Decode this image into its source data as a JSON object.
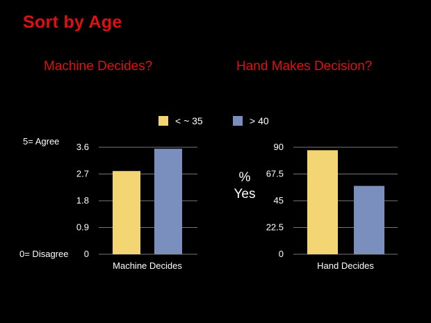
{
  "slide": {
    "title": "Sort by Age",
    "title_color": "#e01010",
    "background": "#000000"
  },
  "legend": [
    {
      "label": "< ~ 35",
      "color": "#f3d673"
    },
    {
      "label": "> 40",
      "color": "#7b8fbf"
    }
  ],
  "chart_data": [
    {
      "type": "bar",
      "title": "Machine Decides?",
      "categories": [
        "Machine Decides"
      ],
      "series": [
        {
          "name": "< ~ 35",
          "values": [
            2.8
          ],
          "color": "#f3d673"
        },
        {
          "name": "> 40",
          "values": [
            3.55
          ],
          "color": "#7b8fbf"
        }
      ],
      "yticks": [
        "0",
        "0.9",
        "1.8",
        "2.7",
        "3.6"
      ],
      "ylim": [
        0,
        3.6
      ],
      "annotations": {
        "top": "5= Agree",
        "bottom": "0= Disagree"
      },
      "ylabel": "",
      "grid": true
    },
    {
      "type": "bar",
      "title": "Hand Makes Decision?",
      "categories": [
        "Hand Decides"
      ],
      "series": [
        {
          "name": "< ~ 35",
          "values": [
            87.5
          ],
          "color": "#f3d673"
        },
        {
          "name": "> 40",
          "values": [
            57.5
          ],
          "color": "#7b8fbf"
        }
      ],
      "yticks": [
        "0",
        "22.5",
        "45",
        "67.5",
        "90"
      ],
      "ylim": [
        0,
        90
      ],
      "ylabel": "%\nYes",
      "ylabel_lines": [
        "%",
        "Yes"
      ],
      "grid": true
    }
  ]
}
